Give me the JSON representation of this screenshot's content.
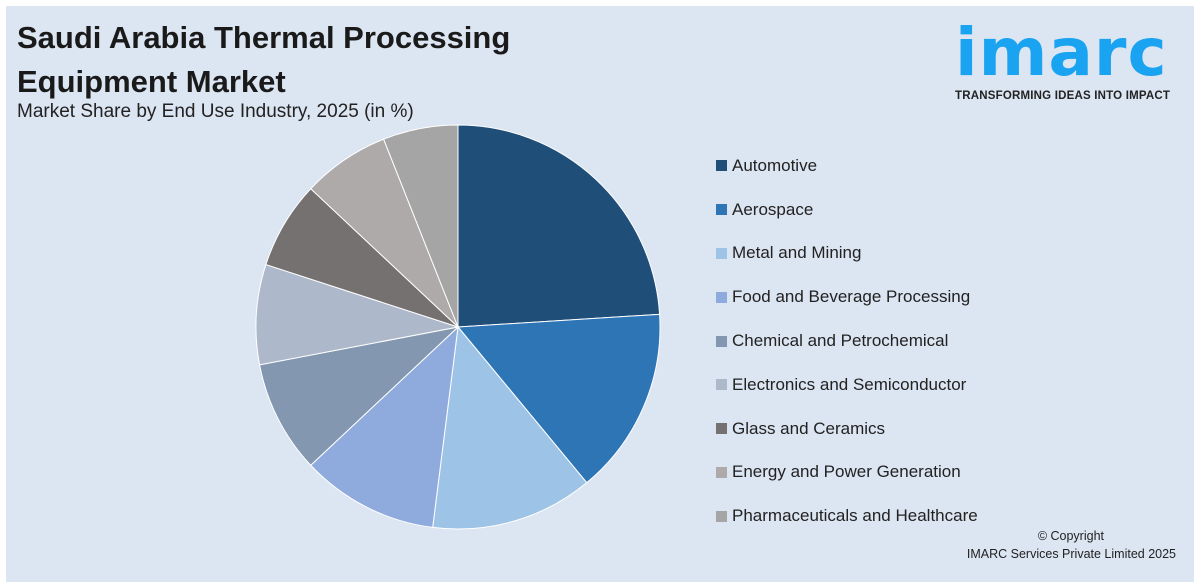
{
  "header": {
    "title": "Saudi Arabia Thermal Processing Equipment Market",
    "subtitle": "Market Share by End Use Industry, 2025 (in %)"
  },
  "logo": {
    "word": "imarc",
    "tagline": "TRANSFORMING IDEAS INTO IMPACT",
    "color": "#1aa3f0"
  },
  "footer": {
    "copyright": "© Copyright",
    "company": "IMARC Services Private Limited 2025"
  },
  "chart_data": {
    "type": "pie",
    "title": "Saudi Arabia Thermal Processing Equipment Market",
    "subtitle": "Market Share by End Use Industry, 2025 (in %)",
    "start_angle": "12 o'clock, clockwise",
    "legend_position": "right",
    "categories": [
      "Automotive",
      "Aerospace",
      "Metal and Mining",
      "Food and Beverage Processing",
      "Chemical and Petrochemical",
      "Electronics and Semiconductor",
      "Glass and Ceramics",
      "Energy and Power Generation",
      "Pharmaceuticals and Healthcare"
    ],
    "values": [
      24,
      15,
      13,
      11,
      9,
      8,
      7,
      7,
      6
    ],
    "colors": [
      "#1f4e79",
      "#2e75b6",
      "#9dc3e6",
      "#8faadc",
      "#8497b0",
      "#adb9ca",
      "#767171",
      "#aeaaaa",
      "#a5a5a5"
    ]
  }
}
